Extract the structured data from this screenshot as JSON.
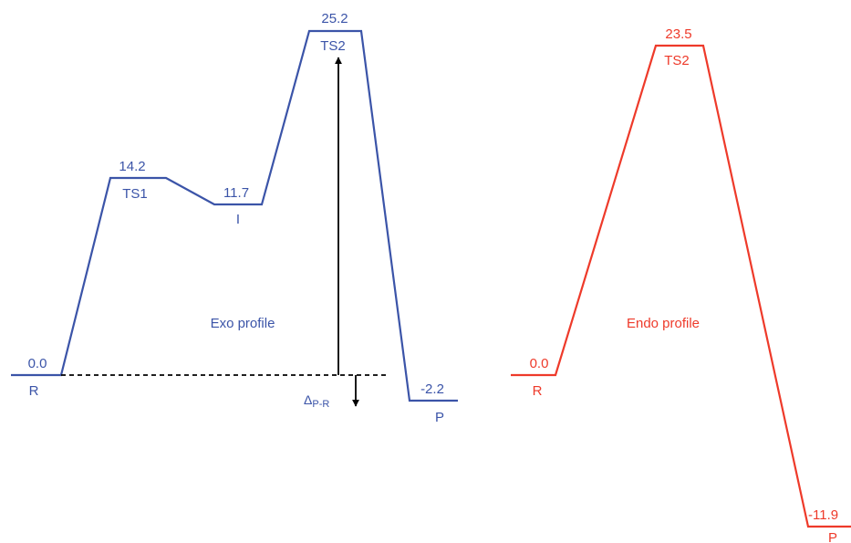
{
  "colors": {
    "exo": "#3b54a8",
    "endo": "#ee3a2a",
    "ink": "#000000"
  },
  "exo": {
    "title": "Exo profile",
    "levels": [
      {
        "label": "R",
        "value": "0.0"
      },
      {
        "label": "TS1",
        "value": "14.2"
      },
      {
        "label": "I",
        "value": "11.7"
      },
      {
        "label": "TS2",
        "value": "25.2"
      },
      {
        "label": "P",
        "value": "-2.2"
      }
    ],
    "delta": {
      "symbol": "Δ",
      "subscript": "P-R"
    }
  },
  "endo": {
    "title": "Endo profile",
    "levels": [
      {
        "label": "R",
        "value": "0.0"
      },
      {
        "label": "TS2",
        "value": "23.5"
      },
      {
        "label": "P",
        "value": "-11.9"
      }
    ]
  }
}
